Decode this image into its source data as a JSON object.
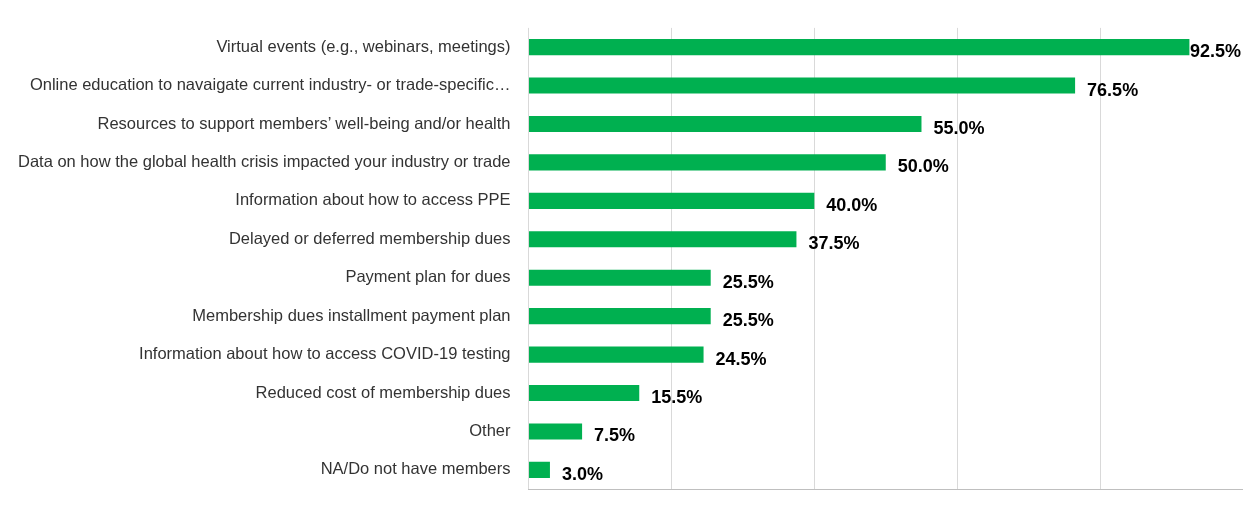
{
  "chart_data": {
    "type": "bar",
    "orientation": "horizontal",
    "categories": [
      "Virtual events (e.g., webinars, meetings)",
      "Online education to navaigate current industry- or trade-specific…",
      "Resources to support members’ well-being and/or health",
      "Data on how the global health crisis impacted your industry or trade",
      "Information about how to access PPE",
      "Delayed or deferred membership dues",
      "Payment plan for dues",
      "Membership dues installment payment plan",
      "Information about how to access COVID-19 testing",
      "Reduced cost of membership dues",
      "Other",
      "NA/Do not have members"
    ],
    "values": [
      92.5,
      76.5,
      55.0,
      50.0,
      40.0,
      37.5,
      25.5,
      25.5,
      24.5,
      15.5,
      7.5,
      3.0
    ],
    "value_labels": [
      "92.5%",
      "76.5%",
      "55.0%",
      "50.0%",
      "40.0%",
      "37.5%",
      "25.5%",
      "25.5%",
      "24.5%",
      "15.5%",
      "7.5%",
      "3.0%"
    ],
    "color": "#00b050",
    "xlim": [
      0,
      100
    ],
    "xticks": [
      {
        "value": 0,
        "label": null
      },
      {
        "value": 20,
        "label": null
      },
      {
        "value": 40,
        "label": null
      },
      {
        "value": 60,
        "label": null
      },
      {
        "value": 80,
        "label": null
      }
    ],
    "grid": "x",
    "tick_labels": "y",
    "legend": false
  }
}
